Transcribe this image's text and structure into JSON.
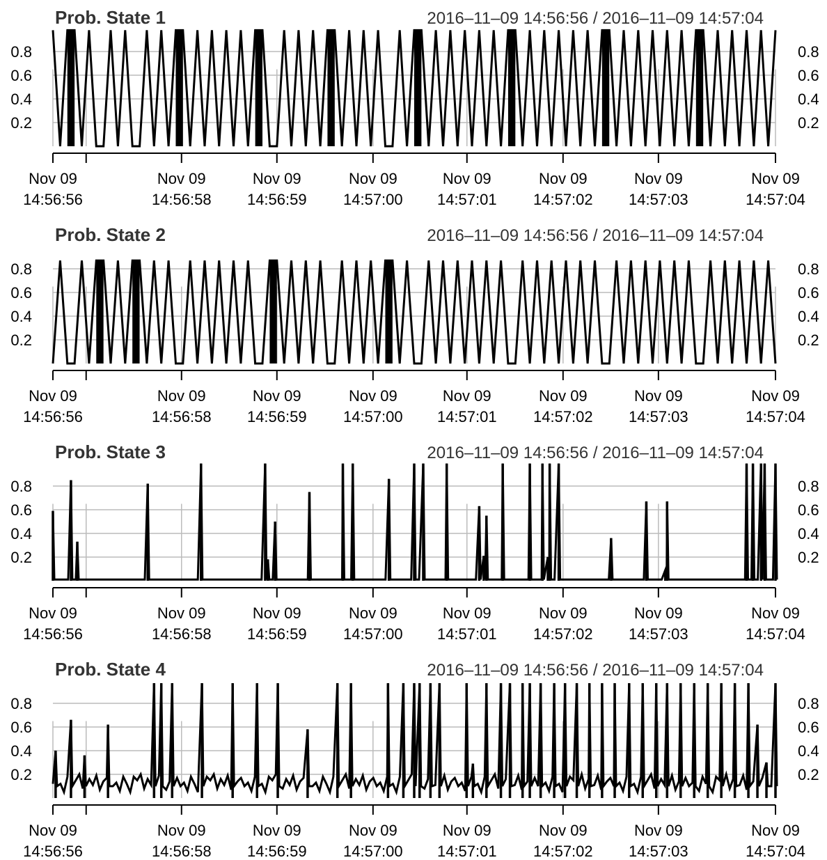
{
  "chart_data": [
    {
      "type": "line",
      "title": "Prob. State 1",
      "subtitle": "2016–11–09 14:56:56 / 2016–11–09 14:57:04",
      "ylim": [
        0,
        1
      ],
      "y_ticks": [
        0.2,
        0.4,
        0.6,
        0.8
      ],
      "y_tick_labels": [
        "0.2",
        "0.4",
        "0.6",
        "0.8"
      ],
      "x_ticks": [
        "14:56:56",
        "14:56:58",
        "14:56:59",
        "14:57:00",
        "14:57:01",
        "14:57:02",
        "14:57:03",
        "14:57:04"
      ],
      "x_tick_labels": [
        [
          "Nov 09",
          "14:56:56"
        ],
        [
          "Nov 09",
          "14:56:58"
        ],
        [
          "Nov 09",
          "14:56:59"
        ],
        [
          "Nov 09",
          "14:57:00"
        ],
        [
          "Nov 09",
          "14:57:01"
        ],
        [
          "Nov 09",
          "14:57:02"
        ],
        [
          "Nov 09",
          "14:57:03"
        ],
        [
          "Nov 09",
          "14:57:04"
        ]
      ],
      "grid": true,
      "series": [
        {
          "x": [
            "14:56:56.00",
            "14:56:56.08",
            "14:56:56.16",
            "14:56:56.24",
            "14:56:56.32",
            "14:56:56.40",
            "14:56:56.48",
            "14:56:56.56",
            "14:56:56.64",
            "14:56:56.72",
            "14:56:56.80",
            "14:56:56.88",
            "14:56:56.96",
            "14:56:57.04",
            "14:56:57.12",
            "14:56:57.20",
            "14:56:57.28",
            "14:56:57.36",
            "14:56:57.44",
            "14:56:57.52",
            "14:56:57.60",
            "14:56:57.68",
            "14:56:57.76",
            "14:56:57.84",
            "14:56:57.92",
            "14:56:58.00",
            "14:56:58.08",
            "14:56:58.16",
            "14:56:58.24",
            "14:56:58.32",
            "14:56:58.40",
            "14:56:58.48",
            "14:56:58.56",
            "14:56:58.64",
            "14:56:58.72",
            "14:56:58.80",
            "14:56:58.88",
            "14:56:58.96",
            "14:56:59.04",
            "14:56:59.12",
            "14:56:59.20",
            "14:56:59.28",
            "14:56:59.36",
            "14:56:59.44",
            "14:56:59.52",
            "14:56:59.60",
            "14:56:59.68",
            "14:56:59.76",
            "14:56:59.84",
            "14:56:59.92",
            "14:57:00.00",
            "14:57:00.08",
            "14:57:00.16",
            "14:57:00.24",
            "14:57:00.32",
            "14:57:00.40",
            "14:57:00.48",
            "14:57:00.56",
            "14:57:00.64",
            "14:57:00.72",
            "14:57:00.80",
            "14:57:00.88",
            "14:57:00.96",
            "14:57:01.04",
            "14:57:01.12",
            "14:57:01.20",
            "14:57:01.28",
            "14:57:01.36",
            "14:57:01.44",
            "14:57:01.52",
            "14:57:01.60",
            "14:57:01.68",
            "14:57:01.76",
            "14:57:01.84",
            "14:57:01.92",
            "14:57:02.00",
            "14:57:02.08",
            "14:57:02.16",
            "14:57:02.24",
            "14:57:02.32",
            "14:57:02.40",
            "14:57:02.48",
            "14:57:02.56",
            "14:57:02.64",
            "14:57:02.72",
            "14:57:02.80",
            "14:57:02.88",
            "14:57:02.96",
            "14:57:03.04",
            "14:57:03.12",
            "14:57:03.20",
            "14:57:03.28",
            "14:57:03.36",
            "14:57:03.44",
            "14:57:03.52",
            "14:57:03.60",
            "14:57:03.68",
            "14:57:03.76",
            "14:57:03.84",
            "14:57:03.92",
            "14:57:04.00"
          ],
          "values": [
            0.98,
            0,
            0.98,
            0.98,
            0,
            0.98,
            0,
            0,
            0.98,
            0,
            0.98,
            0,
            0,
            0.98,
            0,
            0.98,
            0,
            0.98,
            0.98,
            0,
            0.98,
            0,
            0.98,
            0,
            0.98,
            0,
            0.98,
            0,
            0.98,
            0.98,
            0,
            0,
            0.98,
            0,
            0.98,
            0,
            0.98,
            0,
            0.98,
            0.98,
            0,
            0.98,
            0,
            0.98,
            0,
            0.98,
            0,
            0,
            0.98,
            0,
            0.98,
            0.98,
            0,
            0.98,
            0,
            0.98,
            0,
            0.98,
            0,
            0.98,
            0,
            0.98,
            0,
            0.98,
            0.98,
            0,
            0.98,
            0,
            0.98,
            0,
            0.98,
            0,
            0.98,
            0,
            0.98,
            0,
            0.98,
            0.98,
            0,
            0.98,
            0,
            0.98,
            0,
            0.98,
            0,
            0.98,
            0,
            0.98,
            0,
            0.98,
            0.98,
            0,
            0.98,
            0,
            0.98,
            0,
            0.98,
            0,
            0.98,
            0,
            0.98
          ]
        }
      ]
    },
    {
      "type": "line",
      "title": "Prob. State 2",
      "subtitle": "2016–11–09 14:56:56 / 2016–11–09 14:57:04",
      "ylim": [
        0,
        1
      ],
      "y_ticks": [
        0.2,
        0.4,
        0.6,
        0.8
      ],
      "y_tick_labels": [
        "0.2",
        "0.4",
        "0.6",
        "0.8"
      ],
      "x_ticks": [
        "14:56:56",
        "14:56:58",
        "14:56:59",
        "14:57:00",
        "14:57:01",
        "14:57:02",
        "14:57:03",
        "14:57:04"
      ],
      "x_tick_labels": [
        [
          "Nov 09",
          "14:56:56"
        ],
        [
          "Nov 09",
          "14:56:58"
        ],
        [
          "Nov 09",
          "14:56:59"
        ],
        [
          "Nov 09",
          "14:57:00"
        ],
        [
          "Nov 09",
          "14:57:01"
        ],
        [
          "Nov 09",
          "14:57:02"
        ],
        [
          "Nov 09",
          "14:57:03"
        ],
        [
          "Nov 09",
          "14:57:04"
        ]
      ],
      "grid": true,
      "series": [
        {
          "x": [
            "14:56:56.00",
            "14:56:56.08",
            "14:56:56.16",
            "14:56:56.24",
            "14:56:56.32",
            "14:56:56.40",
            "14:56:56.48",
            "14:56:56.56",
            "14:56:56.64",
            "14:56:56.72",
            "14:56:56.80",
            "14:56:56.88",
            "14:56:56.96",
            "14:56:57.04",
            "14:56:57.12",
            "14:56:57.20",
            "14:56:57.28",
            "14:56:57.36",
            "14:56:57.44",
            "14:56:57.52",
            "14:56:57.60",
            "14:56:57.68",
            "14:56:57.76",
            "14:56:57.84",
            "14:56:57.92",
            "14:56:58.00",
            "14:56:58.08",
            "14:56:58.16",
            "14:56:58.24",
            "14:56:58.32",
            "14:56:58.40",
            "14:56:58.48",
            "14:56:58.56",
            "14:56:58.64",
            "14:56:58.72",
            "14:56:58.80",
            "14:56:58.88",
            "14:56:58.96",
            "14:56:59.04",
            "14:56:59.12",
            "14:56:59.20",
            "14:56:59.28",
            "14:56:59.36",
            "14:56:59.44",
            "14:56:59.52",
            "14:56:59.60",
            "14:56:59.68",
            "14:56:59.76",
            "14:56:59.84",
            "14:56:59.92",
            "14:57:00.00",
            "14:57:00.08",
            "14:57:00.16",
            "14:57:00.24",
            "14:57:00.32",
            "14:57:00.40",
            "14:57:00.48",
            "14:57:00.56",
            "14:57:00.64",
            "14:57:00.72",
            "14:57:00.80",
            "14:57:00.88",
            "14:57:00.96",
            "14:57:01.04",
            "14:57:01.12",
            "14:57:01.20",
            "14:57:01.28",
            "14:57:01.36",
            "14:57:01.44",
            "14:57:01.52",
            "14:57:01.60",
            "14:57:01.68",
            "14:57:01.76",
            "14:57:01.84",
            "14:57:01.92",
            "14:57:02.00",
            "14:57:02.08",
            "14:57:02.16",
            "14:57:02.24",
            "14:57:02.32",
            "14:57:02.40",
            "14:57:02.48",
            "14:57:02.56",
            "14:57:02.64",
            "14:57:02.72",
            "14:57:02.80",
            "14:57:02.88",
            "14:57:02.96",
            "14:57:03.04",
            "14:57:03.12",
            "14:57:03.20",
            "14:57:03.28",
            "14:57:03.36",
            "14:57:03.44",
            "14:57:03.52",
            "14:57:03.60",
            "14:57:03.68",
            "14:57:03.76",
            "14:57:03.84",
            "14:57:03.92",
            "14:57:04.00"
          ],
          "values": [
            0,
            0.87,
            0,
            0,
            0.87,
            0,
            0.87,
            0.87,
            0,
            0.87,
            0,
            0.87,
            0.87,
            0,
            0.87,
            0,
            0.87,
            0,
            0,
            0.87,
            0,
            0.87,
            0,
            0.87,
            0,
            0.87,
            0,
            0.87,
            0,
            0,
            0.87,
            0.87,
            0,
            0.87,
            0,
            0.87,
            0,
            0.87,
            0,
            0,
            0.87,
            0,
            0.87,
            0,
            0.87,
            0,
            0.87,
            0.87,
            0,
            0.87,
            0,
            0,
            0.87,
            0,
            0.87,
            0,
            0.87,
            0,
            0.87,
            0,
            0.87,
            0,
            0.87,
            0,
            0,
            0.87,
            0,
            0.87,
            0,
            0.87,
            0,
            0.87,
            0,
            0.87,
            0,
            0.87,
            0,
            0,
            0.87,
            0,
            0.87,
            0,
            0.87,
            0,
            0.87,
            0,
            0.87,
            0,
            0.87,
            0,
            0,
            0.87,
            0,
            0.87,
            0,
            0.87,
            0,
            0.87,
            0,
            0.87,
            0
          ]
        }
      ]
    },
    {
      "type": "line",
      "title": "Prob. State 3",
      "subtitle": "2016–11–09 14:56:56 / 2016–11–09 14:57:04",
      "ylim": [
        0,
        1
      ],
      "y_ticks": [
        0.2,
        0.4,
        0.6,
        0.8
      ],
      "y_tick_labels": [
        "0.2",
        "0.4",
        "0.6",
        "0.8"
      ],
      "x_ticks": [
        "14:56:56",
        "14:56:58",
        "14:56:59",
        "14:57:00",
        "14:57:01",
        "14:57:02",
        "14:57:03",
        "14:57:04"
      ],
      "x_tick_labels": [
        [
          "Nov 09",
          "14:56:56"
        ],
        [
          "Nov 09",
          "14:56:58"
        ],
        [
          "Nov 09",
          "14:56:59"
        ],
        [
          "Nov 09",
          "14:57:00"
        ],
        [
          "Nov 09",
          "14:57:01"
        ],
        [
          "Nov 09",
          "14:57:02"
        ],
        [
          "Nov 09",
          "14:57:03"
        ],
        [
          "Nov 09",
          "14:57:04"
        ]
      ],
      "grid": true,
      "series": [
        {
          "x": [
            "14:56:56.00",
            "14:56:56.20",
            "14:56:56.27",
            "14:56:57.05",
            "14:56:57.64",
            "14:56:58.35",
            "14:56:58.38",
            "14:56:58.46",
            "14:56:58.84",
            "14:56:59.21",
            "14:56:59.32",
            "14:56:59.72",
            "14:57:00.00",
            "14:57:00.10",
            "14:57:00.36",
            "14:57:00.72",
            "14:57:00.77",
            "14:57:00.80",
            "14:57:00.98",
            "14:57:01.28",
            "14:57:01.42",
            "14:57:01.48",
            "14:57:01.50",
            "14:57:01.60",
            "14:57:02.18",
            "14:57:02.57",
            "14:57:02.78",
            "14:57:02.80",
            "14:57:03.68",
            "14:57:03.75",
            "14:57:03.84",
            "14:57:03.88",
            "14:57:04.00"
          ],
          "values": [
            0.59,
            0.85,
            0.33,
            0.82,
            0.99,
            0.99,
            0.18,
            0.5,
            0.75,
            0.99,
            0.99,
            0.86,
            0.99,
            0.99,
            0.99,
            0.63,
            0.21,
            0.55,
            0.99,
            0.99,
            0.99,
            0.2,
            0.99,
            0.99,
            0.36,
            0.67,
            0.09,
            0.67,
            0.99,
            0.99,
            0.99,
            0.99,
            0.99
          ]
        }
      ]
    },
    {
      "type": "line",
      "title": "Prob. State 4",
      "subtitle": "2016–11–09 14:56:56 / 2016–11–09 14:57:04",
      "ylim": [
        0,
        1
      ],
      "y_ticks": [
        0.2,
        0.4,
        0.6,
        0.8
      ],
      "y_tick_labels": [
        "0.2",
        "0.4",
        "0.6",
        "0.8"
      ],
      "x_ticks": [
        "14:56:56",
        "14:56:58",
        "14:56:59",
        "14:57:00",
        "14:57:01",
        "14:57:02",
        "14:57:03",
        "14:57:04"
      ],
      "x_tick_labels": [
        [
          "Nov 09",
          "14:56:56"
        ],
        [
          "Nov 09",
          "14:56:58"
        ],
        [
          "Nov 09",
          "14:56:59"
        ],
        [
          "Nov 09",
          "14:57:00"
        ],
        [
          "Nov 09",
          "14:57:01"
        ],
        [
          "Nov 09",
          "14:57:02"
        ],
        [
          "Nov 09",
          "14:57:03"
        ],
        [
          "Nov 09",
          "14:57:04"
        ]
      ],
      "grid": true,
      "series": [
        {
          "x": [
            "14:56:56.03",
            "14:56:56.20",
            "14:56:56.35",
            "14:56:56.61",
            "14:56:57.12",
            "14:56:57.20",
            "14:56:57.32",
            "14:56:57.65",
            "14:56:57.99",
            "14:56:58.26",
            "14:56:58.49",
            "14:56:58.82",
            "14:56:59.15",
            "14:56:59.30",
            "14:56:59.71",
            "14:56:59.88",
            "14:57:00.00",
            "14:57:00.06",
            "14:57:00.18",
            "14:57:00.28",
            "14:57:00.58",
            "14:57:00.65",
            "14:57:00.80",
            "14:57:00.96",
            "14:57:01.06",
            "14:57:01.20",
            "14:57:01.28",
            "14:57:01.40",
            "14:57:01.55",
            "14:57:01.67",
            "14:57:01.80",
            "14:57:01.94",
            "14:57:02.08",
            "14:57:02.22",
            "14:57:02.38",
            "14:57:02.53",
            "14:57:02.68",
            "14:57:02.80",
            "14:57:02.95",
            "14:57:03.10",
            "14:57:03.25",
            "14:57:03.40",
            "14:57:03.55",
            "14:57:03.70",
            "14:57:03.80",
            "14:57:03.90",
            "14:57:04.00"
          ],
          "values": [
            0.4,
            0.66,
            0.36,
            0.62,
            0.97,
            0.97,
            0.97,
            0.97,
            0.97,
            0.97,
            0.97,
            0.58,
            0.97,
            0.97,
            0.97,
            0.97,
            0.97,
            0.97,
            0.97,
            0.97,
            0.97,
            0.29,
            0.97,
            0.97,
            0.97,
            0.97,
            0.97,
            0.97,
            0.97,
            0.97,
            0.97,
            0.97,
            0.97,
            0.97,
            0.97,
            0.97,
            0.97,
            0.97,
            0.97,
            0.97,
            0.97,
            0.97,
            0.97,
            0.97,
            0.62,
            0.3,
            0.97
          ],
          "baseline_noise": [
            0.12,
            0.05,
            0.18,
            0.15,
            0.2,
            0.08,
            0.16,
            0.11,
            0.19,
            0.07,
            0.14,
            0.17,
            0.1,
            0.13,
            0.06,
            0.18
          ]
        }
      ]
    }
  ]
}
